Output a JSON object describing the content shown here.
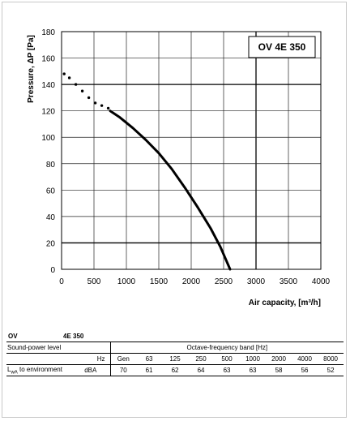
{
  "chart_data": {
    "type": "line",
    "title": "OV 4E 350",
    "ylabel": "Pressure, ΔP [Pa]",
    "xlabel": "Air capacity, [m³/h]",
    "xlim": [
      0,
      4000
    ],
    "ylim": [
      0,
      180
    ],
    "xticks": [
      0,
      500,
      1000,
      1500,
      2000,
      2500,
      3000,
      3500,
      4000
    ],
    "yticks": [
      0,
      20,
      40,
      60,
      80,
      100,
      120,
      140,
      160,
      180
    ],
    "highlight_gridlines_y": [
      20,
      140
    ],
    "highlight_gridline_x": 3000,
    "series": [
      {
        "style": "dotted",
        "x": [
          40,
          120,
          220,
          320,
          420,
          520,
          620,
          720
        ],
        "y": [
          148,
          145,
          140,
          135,
          130,
          126,
          124,
          122
        ]
      },
      {
        "style": "solid",
        "x": [
          750,
          900,
          1100,
          1300,
          1500,
          1700,
          1900,
          2100,
          2300,
          2450,
          2600
        ],
        "y": [
          120,
          115,
          107,
          98,
          88,
          76,
          62,
          47,
          31,
          17,
          0
        ]
      }
    ]
  },
  "table": {
    "model": "OV",
    "model_size": "4E 350",
    "row1_label": "Sound-power level",
    "band_header": "Octave-frequency band [Hz]",
    "hz_label": "Hz",
    "bands": [
      "Gen",
      "63",
      "125",
      "250",
      "500",
      "1000",
      "2000",
      "4000",
      "8000"
    ],
    "lwa_main": "L",
    "lwa_sub": "wA",
    "lwa_rest": " to environment",
    "unit": "dBA",
    "values": [
      "70",
      "61",
      "62",
      "64",
      "63",
      "63",
      "58",
      "56",
      "52"
    ]
  }
}
